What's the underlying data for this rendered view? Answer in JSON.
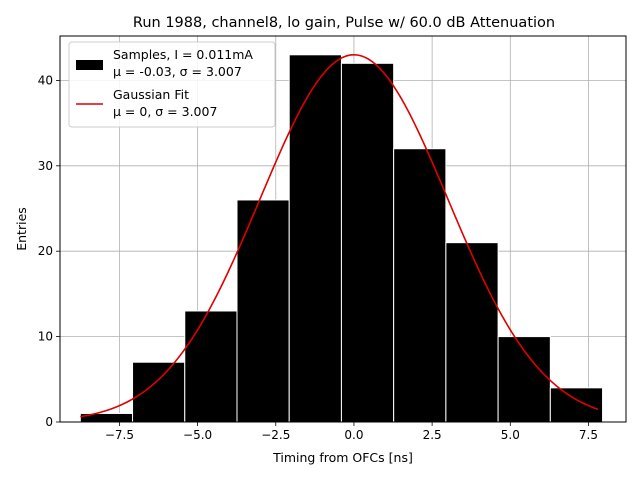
{
  "chart_data": {
    "type": "bar",
    "title": "Run 1988, channel8, lo gain, Pulse w/ 60.0 dB Attenuation",
    "xlabel": "Timing from OFCs [ns]",
    "ylabel": "Entries",
    "xlim": [
      -9.4,
      8.7
    ],
    "ylim": [
      0,
      45.2
    ],
    "grid": true,
    "legend_position": "top-left",
    "histogram": {
      "name": "Samples, I = 0.011mA",
      "stats_line": "μ = -0.03, σ = 3.007",
      "color": "#000000",
      "edge_color": "#ffffff",
      "bin_edges": [
        -8.75,
        -7.08,
        -5.41,
        -3.74,
        -2.07,
        -0.4,
        1.27,
        2.94,
        4.61,
        6.28,
        7.95
      ],
      "values": [
        1,
        7,
        13,
        26,
        43,
        42,
        32,
        21,
        10,
        4
      ]
    },
    "fit": {
      "name": "Gaussian Fit",
      "stats_line": "μ = 0, σ = 3.007",
      "color": "#e00000",
      "mu": 0,
      "sigma": 3.007,
      "amplitude": 43,
      "x_range": [
        -8.75,
        7.8
      ]
    },
    "x_ticks": [
      -7.5,
      -5.0,
      -2.5,
      0.0,
      2.5,
      5.0,
      7.5
    ],
    "x_tick_labels": [
      "−7.5",
      "−5.0",
      "−2.5",
      "0.0",
      "2.5",
      "5.0",
      "7.5"
    ],
    "y_ticks": [
      0,
      10,
      20,
      30,
      40
    ],
    "y_tick_labels": [
      "0",
      "10",
      "20",
      "30",
      "40"
    ]
  }
}
